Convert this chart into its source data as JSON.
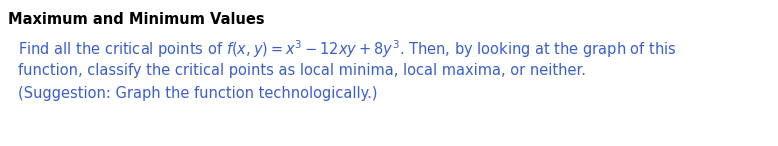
{
  "title": "Maximum and Minimum Values",
  "title_color": "#000000",
  "title_fontsize": 10.5,
  "body_color": "#3A5FCD",
  "body_fontsize": 10.5,
  "background_color": "#FFFFFF",
  "line1": "Find all the critical points of $f(x, y) = x^3 - 12xy + 8y^3$. Then, by looking at the graph of this",
  "line2": "function, classify the critical points as local minima, local maxima, or neither.",
  "line3": "(Suggestion: Graph the function technologically.)",
  "fig_width": 7.78,
  "fig_height": 1.46,
  "dpi": 100
}
